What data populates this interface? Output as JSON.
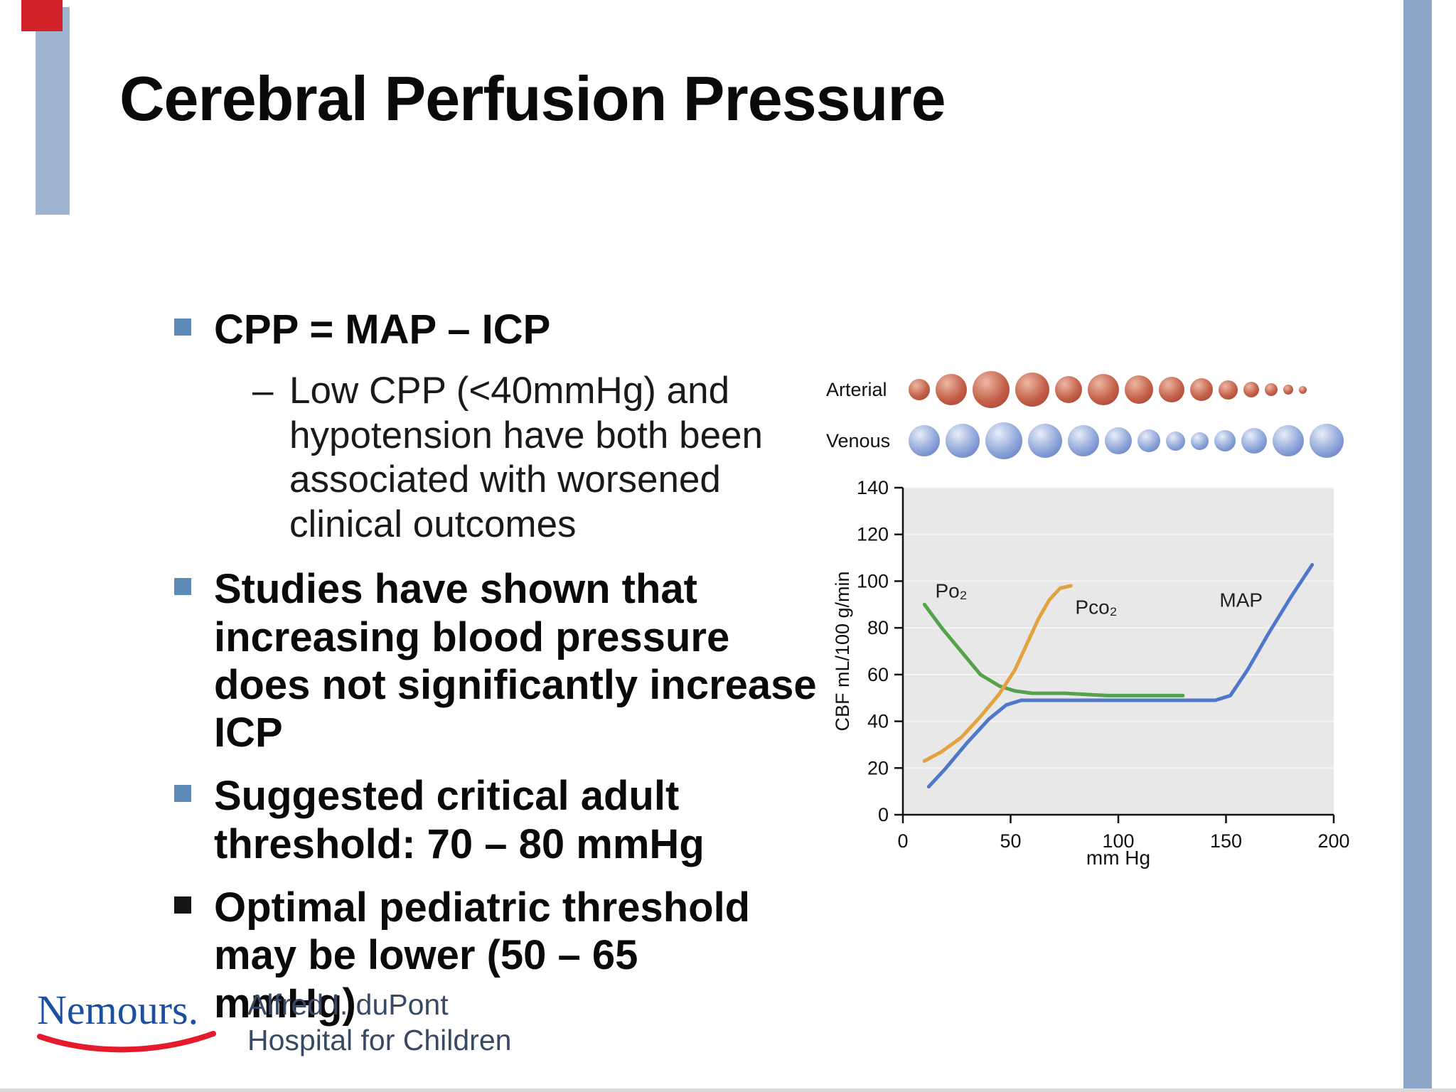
{
  "slide": {
    "title": "Cerebral Perfusion Pressure",
    "bullets": [
      {
        "text": "CPP = MAP – ICP",
        "marker_color": "#5e8ab7"
      },
      {
        "text": "Studies have shown that increasing blood pressure does not significantly increase ICP",
        "marker_color": "#5e8ab7"
      },
      {
        "text": "Suggested critical adult threshold: 70 – 80 mmHg",
        "marker_color": "#5e8ab7"
      },
      {
        "text": "Optimal pediatric threshold may be lower (50 – 65 mmHg)",
        "marker_color": "#141414"
      }
    ],
    "sub_bullet": {
      "marker": "–",
      "text": "Low CPP (<40mmHg) and hypotension have both been associated with worsened clinical outcomes"
    },
    "colors": {
      "left_accent_bar": "#9fb4d1",
      "red_accent": "#d2232a",
      "right_edge_bar": "#8da5c6"
    },
    "logo": {
      "brand": "Nemours.",
      "brand_color": "#1b4fa0",
      "swoosh_color": "#e31b2d",
      "org_line1": "Alfred I. duPont",
      "org_line2": "Hospital for Children",
      "org_color": "#38486093"
    }
  },
  "figure": {
    "arterial_label": "Arterial",
    "venous_label": "Venous",
    "arterial_circles": [
      30,
      44,
      52,
      48,
      38,
      44,
      40,
      36,
      32,
      27,
      22,
      18,
      14,
      11
    ],
    "venous_circles": [
      44,
      48,
      52,
      48,
      44,
      38,
      32,
      27,
      25,
      30,
      36,
      44,
      48
    ],
    "arterial_palette": {
      "highlight": "#edb7a2",
      "mid": "#c4614b",
      "edge": "#a03a2b"
    },
    "venous_palette": {
      "highlight": "#e8edf9",
      "mid": "#8ea6d9",
      "edge": "#5a72ba"
    }
  },
  "chart_data": {
    "type": "line",
    "title": "",
    "xlabel": "mm Hg",
    "ylabel": "CBF mL/100 g/min",
    "xlim": [
      0,
      200
    ],
    "ylim": [
      0,
      140
    ],
    "xticks": [
      0,
      50,
      100,
      150,
      200
    ],
    "yticks": [
      0,
      20,
      40,
      60,
      80,
      100,
      120,
      140
    ],
    "grid": true,
    "plot_bg": "#e8e8e8",
    "series": [
      {
        "name": "Po₂",
        "color": "#56a14c",
        "points": [
          [
            10,
            90
          ],
          [
            18,
            80
          ],
          [
            27,
            70
          ],
          [
            36,
            60
          ],
          [
            45,
            55
          ],
          [
            52,
            53
          ],
          [
            60,
            52
          ],
          [
            75,
            52
          ],
          [
            95,
            51
          ],
          [
            115,
            51
          ],
          [
            130,
            51
          ]
        ]
      },
      {
        "name": "Pco₂",
        "color": "#e2a23f",
        "points": [
          [
            10,
            23
          ],
          [
            18,
            27
          ],
          [
            27,
            33
          ],
          [
            36,
            42
          ],
          [
            45,
            52
          ],
          [
            52,
            62
          ],
          [
            58,
            74
          ],
          [
            63,
            84
          ],
          [
            68,
            92
          ],
          [
            73,
            97
          ],
          [
            78,
            98
          ]
        ]
      },
      {
        "name": "MAP",
        "color": "#4f79c8",
        "points": [
          [
            12,
            12
          ],
          [
            20,
            20
          ],
          [
            30,
            31
          ],
          [
            40,
            41
          ],
          [
            48,
            47
          ],
          [
            55,
            49
          ],
          [
            70,
            49
          ],
          [
            90,
            49
          ],
          [
            110,
            49
          ],
          [
            130,
            49
          ],
          [
            145,
            49
          ],
          [
            152,
            51
          ],
          [
            160,
            62
          ],
          [
            170,
            78
          ],
          [
            180,
            93
          ],
          [
            190,
            107
          ]
        ]
      }
    ],
    "labels": [
      {
        "text": "Po₂",
        "x": 15,
        "y": 93
      },
      {
        "text": "Pco₂",
        "x": 80,
        "y": 86
      },
      {
        "text": "MAP",
        "x": 147,
        "y": 89
      }
    ]
  }
}
